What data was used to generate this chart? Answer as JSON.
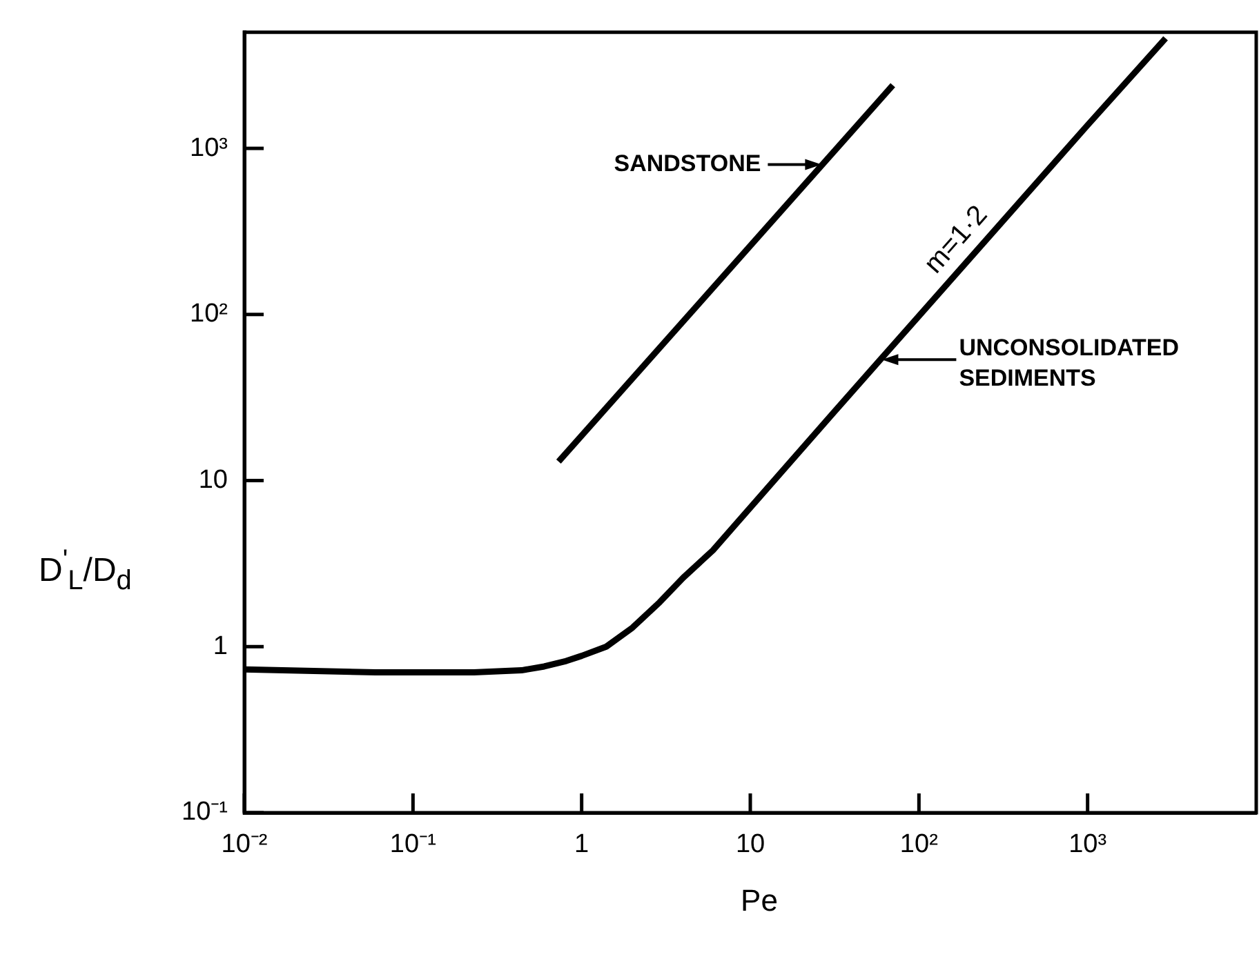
{
  "chart_data": {
    "type": "line",
    "xlabel": "Pe",
    "ylabel": "D$^{'}$$_{L}$/D$_{d}$",
    "log": "xy",
    "grid": false,
    "legend": false,
    "marker": "none",
    "line_style": "solid",
    "xlim": [
      0.01,
      10000
    ],
    "ylim": [
      0.1,
      5000
    ],
    "xticks": [
      {
        "value": 0.01,
        "label": "10⁻²"
      },
      {
        "value": 0.1,
        "label": "10⁻¹"
      },
      1,
      10,
      {
        "value": 100,
        "label": "10²"
      },
      {
        "value": 1000,
        "label": "10³"
      }
    ],
    "yticks": [
      {
        "value": 0.1,
        "label": "10⁻¹"
      },
      1,
      10,
      {
        "value": 100,
        "label": "10²"
      },
      {
        "value": 1000,
        "label": "10³"
      }
    ],
    "series": [
      {
        "color": "#000000",
        "x": [
          0.73,
          70
        ],
        "values": [
          13,
          2400
        ]
      },
      {
        "color": "#000000",
        "x": [
          0.01,
          0.06,
          0.23,
          0.44,
          0.6,
          0.81,
          1.0,
          1.4,
          2,
          2.9,
          4,
          6,
          12.5,
          31,
          100,
          1000,
          2900
        ],
        "values": [
          0.73,
          0.7,
          0.7,
          0.72,
          0.76,
          0.82,
          0.88,
          1.0,
          1.3,
          1.85,
          2.6,
          3.8,
          8.9,
          25.5,
          98,
          1380,
          4600
        ]
      }
    ],
    "annotations": [
      {
        "text": "SANDSTONE",
        "x": 27,
        "y": 800
      },
      "m=1·2",
      "UNCONSOLIDATED\nSEDIMENTS"
    ]
  }
}
